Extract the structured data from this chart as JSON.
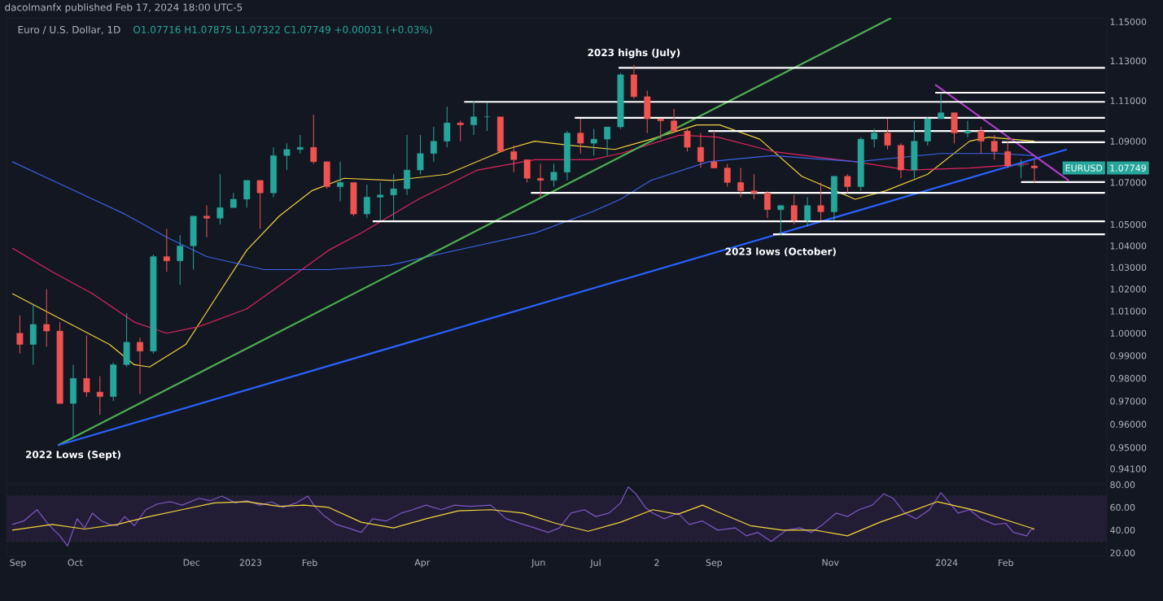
{
  "chart_data": [
    {
      "type": "candlestick",
      "title": "Euro / U.S. Dollar, 1D",
      "subtitle": "O1.07716 H1.07875 L1.07322 C1.07749 +0.00031 (+0.03%)",
      "annotations": [
        "dacolmanfx published Feb 17, 2024 18:00 UTC-5",
        {
          "text": "2023 highs (July)",
          "x": "2023-07-21",
          "y": 1.128
        },
        {
          "text": "2023 lows (October)",
          "x": "2023-10-06",
          "y": 1.045
        },
        {
          "text": "2022 Lows (Sept)",
          "x": "2022-09-30",
          "y": 0.954
        },
        "EURUSD",
        "1.07749"
      ],
      "x": [
        "2022-09-02",
        "2022-09-09",
        "2022-09-16",
        "2022-09-23",
        "2022-09-30",
        "2022-10-07",
        "2022-10-14",
        "2022-10-21",
        "2022-10-28",
        "2022-11-04",
        "2022-11-11",
        "2022-11-18",
        "2022-11-25",
        "2022-12-02",
        "2022-12-09",
        "2022-12-16",
        "2022-12-23",
        "2022-12-30",
        "2023-01-06",
        "2023-01-13",
        "2023-01-20",
        "2023-01-27",
        "2023-02-03",
        "2023-02-10",
        "2023-02-17",
        "2023-02-24",
        "2023-03-03",
        "2023-03-10",
        "2023-03-17",
        "2023-03-24",
        "2023-03-31",
        "2023-04-07",
        "2023-04-14",
        "2023-04-21",
        "2023-04-28",
        "2023-05-05",
        "2023-05-12",
        "2023-05-19",
        "2023-05-26",
        "2023-06-02",
        "2023-06-09",
        "2023-06-16",
        "2023-06-23",
        "2023-06-30",
        "2023-07-07",
        "2023-07-14",
        "2023-07-21",
        "2023-07-28",
        "2023-08-04",
        "2023-08-11",
        "2023-08-18",
        "2023-08-25",
        "2023-09-01",
        "2023-09-08",
        "2023-09-15",
        "2023-09-22",
        "2023-09-29",
        "2023-10-06",
        "2023-10-13",
        "2023-10-20",
        "2023-10-27",
        "2023-11-03",
        "2023-11-10",
        "2023-11-17",
        "2023-11-24",
        "2023-12-01",
        "2023-12-08",
        "2023-12-15",
        "2023-12-22",
        "2023-12-29",
        "2024-01-05",
        "2024-01-12",
        "2024-01-19",
        "2024-01-26",
        "2024-02-02",
        "2024-02-09",
        "2024-02-16"
      ],
      "ohlc": [
        [
          1.0,
          1.008,
          0.991,
          0.995
        ],
        [
          0.995,
          1.013,
          0.986,
          1.004
        ],
        [
          1.004,
          1.02,
          0.994,
          1.001
        ],
        [
          1.001,
          1.005,
          0.969,
          0.969
        ],
        [
          0.969,
          0.986,
          0.954,
          0.98
        ],
        [
          0.98,
          0.999,
          0.972,
          0.974
        ],
        [
          0.974,
          0.981,
          0.964,
          0.972
        ],
        [
          0.972,
          0.987,
          0.97,
          0.986
        ],
        [
          0.986,
          1.009,
          0.985,
          0.996
        ],
        [
          0.996,
          0.998,
          0.973,
          0.992
        ],
        [
          0.992,
          1.036,
          0.991,
          1.035
        ],
        [
          1.035,
          1.048,
          1.028,
          1.033
        ],
        [
          1.033,
          1.045,
          1.022,
          1.04
        ],
        [
          1.04,
          1.054,
          1.029,
          1.054
        ],
        [
          1.054,
          1.059,
          1.044,
          1.053
        ],
        [
          1.053,
          1.074,
          1.05,
          1.058
        ],
        [
          1.058,
          1.065,
          1.058,
          1.062
        ],
        [
          1.062,
          1.071,
          1.058,
          1.071
        ],
        [
          1.071,
          1.071,
          1.048,
          1.065
        ],
        [
          1.065,
          1.087,
          1.063,
          1.083
        ],
        [
          1.083,
          1.089,
          1.076,
          1.086
        ],
        [
          1.086,
          1.093,
          1.084,
          1.087
        ],
        [
          1.087,
          1.103,
          1.079,
          1.08
        ],
        [
          1.08,
          1.08,
          1.067,
          1.068
        ],
        [
          1.068,
          1.08,
          1.061,
          1.07
        ],
        [
          1.07,
          1.07,
          1.054,
          1.055
        ],
        [
          1.055,
          1.069,
          1.053,
          1.063
        ],
        [
          1.063,
          1.07,
          1.052,
          1.064
        ],
        [
          1.064,
          1.074,
          1.052,
          1.067
        ],
        [
          1.067,
          1.093,
          1.064,
          1.076
        ],
        [
          1.076,
          1.093,
          1.074,
          1.084
        ],
        [
          1.084,
          1.097,
          1.08,
          1.09
        ],
        [
          1.09,
          1.107,
          1.087,
          1.099
        ],
        [
          1.099,
          1.1,
          1.09,
          1.098
        ],
        [
          1.098,
          1.11,
          1.093,
          1.102
        ],
        [
          1.102,
          1.109,
          1.095,
          1.102
        ],
        [
          1.102,
          1.102,
          1.085,
          1.085
        ],
        [
          1.085,
          1.088,
          1.075,
          1.081
        ],
        [
          1.081,
          1.081,
          1.07,
          1.072
        ],
        [
          1.072,
          1.079,
          1.063,
          1.071
        ],
        [
          1.071,
          1.079,
          1.068,
          1.075
        ],
        [
          1.075,
          1.095,
          1.071,
          1.094
        ],
        [
          1.094,
          1.101,
          1.084,
          1.089
        ],
        [
          1.089,
          1.096,
          1.083,
          1.091
        ],
        [
          1.091,
          1.097,
          1.083,
          1.097
        ],
        [
          1.097,
          1.124,
          1.096,
          1.123
        ],
        [
          1.123,
          1.128,
          1.111,
          1.112
        ],
        [
          1.112,
          1.115,
          1.094,
          1.101
        ],
        [
          1.101,
          1.101,
          1.091,
          1.1
        ],
        [
          1.1,
          1.106,
          1.094,
          1.095
        ],
        [
          1.095,
          1.096,
          1.085,
          1.087
        ],
        [
          1.087,
          1.094,
          1.077,
          1.08
        ],
        [
          1.08,
          1.095,
          1.077,
          1.077
        ],
        [
          1.077,
          1.079,
          1.068,
          1.07
        ],
        [
          1.07,
          1.077,
          1.063,
          1.066
        ],
        [
          1.066,
          1.074,
          1.062,
          1.065
        ],
        [
          1.065,
          1.066,
          1.053,
          1.057
        ],
        [
          1.057,
          1.059,
          1.045,
          1.059
        ],
        [
          1.059,
          1.064,
          1.05,
          1.052
        ],
        [
          1.052,
          1.063,
          1.049,
          1.059
        ],
        [
          1.059,
          1.07,
          1.052,
          1.056
        ],
        [
          1.056,
          1.073,
          1.052,
          1.073
        ],
        [
          1.073,
          1.074,
          1.065,
          1.068
        ],
        [
          1.068,
          1.092,
          1.066,
          1.091
        ],
        [
          1.091,
          1.096,
          1.087,
          1.094
        ],
        [
          1.094,
          1.101,
          1.086,
          1.088
        ],
        [
          1.088,
          1.089,
          1.072,
          1.076
        ],
        [
          1.076,
          1.1,
          1.072,
          1.09
        ],
        [
          1.09,
          1.102,
          1.088,
          1.101
        ],
        [
          1.101,
          1.114,
          1.101,
          1.104
        ],
        [
          1.104,
          1.104,
          1.089,
          1.094
        ],
        [
          1.094,
          1.1,
          1.092,
          1.095
        ],
        [
          1.095,
          1.097,
          1.084,
          1.09
        ],
        [
          1.09,
          1.093,
          1.081,
          1.085
        ],
        [
          1.085,
          1.09,
          1.077,
          1.078
        ],
        [
          1.078,
          1.081,
          1.072,
          1.078
        ],
        [
          1.078,
          1.081,
          1.07,
          1.077
        ]
      ],
      "series": [
        {
          "type": "line",
          "color": "#f2d03c",
          "x": [
            "2022-08-29",
            "2022-09-20",
            "2022-10-19",
            "2022-11-01",
            "2022-11-09",
            "2022-11-28",
            "2022-12-13",
            "2022-12-30",
            "2023-01-16",
            "2023-02-02",
            "2023-02-19",
            "2023-03-17",
            "2023-04-14",
            "2023-05-15",
            "2023-05-30",
            "2023-06-17",
            "2023-07-11",
            "2023-07-30",
            "2023-08-23",
            "2023-09-04",
            "2023-09-25",
            "2023-10-17",
            "2023-11-14",
            "2023-11-30",
            "2023-12-22",
            "2024-01-13",
            "2024-01-23",
            "2024-02-04",
            "2024-02-16"
          ],
          "values": [
            1.018,
            1.008,
            0.995,
            0.986,
            0.985,
            0.995,
            1.015,
            1.038,
            1.054,
            1.066,
            1.072,
            1.071,
            1.074,
            1.086,
            1.09,
            1.088,
            1.086,
            1.091,
            1.098,
            1.098,
            1.091,
            1.073,
            1.062,
            1.066,
            1.074,
            1.09,
            1.092,
            1.091,
            1.09
          ]
        },
        {
          "type": "line",
          "color": "#e0245e",
          "x": [
            "2022-08-29",
            "2022-09-19",
            "2022-10-10",
            "2022-11-01",
            "2022-11-18",
            "2022-12-05",
            "2022-12-30",
            "2023-01-20",
            "2023-02-11",
            "2023-02-28",
            "2023-03-30",
            "2023-04-30",
            "2023-05-30",
            "2023-06-29",
            "2023-07-14",
            "2023-08-14",
            "2023-09-03",
            "2023-10-02",
            "2023-11-14",
            "2023-12-12",
            "2024-01-13",
            "2024-02-13"
          ],
          "values": [
            1.039,
            1.028,
            1.018,
            1.005,
            1.0,
            1.003,
            1.011,
            1.024,
            1.038,
            1.046,
            1.062,
            1.076,
            1.081,
            1.081,
            1.084,
            1.093,
            1.092,
            1.085,
            1.08,
            1.076,
            1.077,
            1.079
          ]
        },
        {
          "type": "line",
          "color": "#3a63e8",
          "x": [
            "2022-08-29",
            "2022-09-19",
            "2022-10-27",
            "2022-11-18",
            "2022-12-09",
            "2023-01-08",
            "2023-02-11",
            "2023-03-15",
            "2023-04-14",
            "2023-05-30",
            "2023-06-29",
            "2023-07-14",
            "2023-07-30",
            "2023-08-29",
            "2023-09-20",
            "2023-10-02",
            "2023-11-15",
            "2023-12-29",
            "2024-01-28",
            "2024-02-16"
          ],
          "values": [
            1.08,
            1.071,
            1.055,
            1.044,
            1.035,
            1.029,
            1.029,
            1.031,
            1.037,
            1.046,
            1.056,
            1.062,
            1.071,
            1.08,
            1.082,
            1.083,
            1.08,
            1.084,
            1.084,
            1.083
          ]
        },
        {
          "type": "line",
          "color": "#4caf50",
          "x": [
            "2022-09-22",
            "2023-12-03"
          ],
          "values": [
            0.951,
            1.152
          ]
        },
        {
          "type": "line",
          "color": "#2962ff",
          "x": [
            "2022-09-22",
            "2024-03-04"
          ],
          "values": [
            0.951,
            1.086
          ]
        },
        {
          "type": "line",
          "color": "#b03cc8",
          "x": [
            "2023-12-26",
            "2024-03-05"
          ],
          "values": [
            1.118,
            1.071
          ]
        },
        {
          "type": "line",
          "color": "#ffffff",
          "x": [
            "2023-07-13",
            "2024-03-24"
          ],
          "values": [
            1.1265,
            1.1265
          ]
        },
        {
          "type": "line",
          "color": "#ffffff",
          "x": [
            "2023-12-26",
            "2024-03-24"
          ],
          "values": [
            1.114,
            1.114
          ]
        },
        {
          "type": "line",
          "color": "#ffffff",
          "x": [
            "2023-04-23",
            "2024-03-24"
          ],
          "values": [
            1.1094,
            1.1094
          ]
        },
        {
          "type": "line",
          "color": "#ffffff",
          "x": [
            "2023-06-20",
            "2024-03-24"
          ],
          "values": [
            1.1015,
            1.1015
          ]
        },
        {
          "type": "line",
          "color": "#ffffff",
          "x": [
            "2023-08-29",
            "2024-03-24"
          ],
          "values": [
            1.095,
            1.095
          ]
        },
        {
          "type": "line",
          "color": "#ffffff",
          "x": [
            "2024-01-30",
            "2024-03-24"
          ],
          "values": [
            1.0895,
            1.0895
          ]
        },
        {
          "type": "line",
          "color": "#ffffff",
          "x": [
            "2024-02-09",
            "2024-03-24"
          ],
          "values": [
            1.0702,
            1.0702
          ]
        },
        {
          "type": "line",
          "color": "#ffffff",
          "x": [
            "2023-05-28",
            "2024-03-24"
          ],
          "values": [
            1.065,
            1.065
          ]
        },
        {
          "type": "line",
          "color": "#ffffff",
          "x": [
            "2023-03-06",
            "2024-03-24"
          ],
          "values": [
            1.0515,
            1.0515
          ]
        },
        {
          "type": "line",
          "color": "#ffffff",
          "x": [
            "2023-10-02",
            "2024-03-24"
          ],
          "values": [
            1.0454,
            1.0454
          ]
        }
      ],
      "xlim": [
        "2022-08-26",
        "2024-03-25"
      ],
      "ylim": [
        0.935,
        1.152
      ],
      "log": true,
      "tick_labels": "y",
      "yticks": [
        {
          "value": 0.941,
          "label": "0.94100"
        },
        {
          "value": 0.95,
          "label": "0.95000"
        },
        {
          "value": 0.96,
          "label": "0.96000"
        },
        {
          "value": 0.97,
          "label": "0.97000"
        },
        {
          "value": 0.98,
          "label": "0.98000"
        },
        {
          "value": 0.99,
          "label": "0.99000"
        },
        {
          "value": 1.0,
          "label": "1.00000"
        },
        {
          "value": 1.01,
          "label": "1.01000"
        },
        {
          "value": 1.02,
          "label": "1.02000"
        },
        {
          "value": 1.03,
          "label": "1.03000"
        },
        {
          "value": 1.04,
          "label": "1.04000"
        },
        {
          "value": 1.05,
          "label": "1.05000"
        },
        {
          "value": 1.07,
          "label": "1.07000"
        },
        {
          "value": 1.09,
          "label": "1.09000"
        },
        {
          "value": 1.11,
          "label": "1.11000"
        },
        {
          "value": 1.13,
          "label": "1.13000"
        },
        {
          "value": 1.15,
          "label": "1.15000"
        }
      ]
    },
    {
      "type": "line",
      "xlim": [
        "2022-08-26",
        "2024-03-25"
      ],
      "ylim": [
        17,
        80
      ],
      "yticks": [
        {
          "value": 20,
          "label": "20.00"
        },
        {
          "value": 40,
          "label": "40.00"
        },
        {
          "value": 60,
          "label": "60.00"
        },
        {
          "value": 80,
          "label": "80.00"
        }
      ],
      "xticks": [
        {
          "value": "2022-09-01",
          "label": "Sep"
        },
        {
          "value": "2022-10-01",
          "label": "Oct"
        },
        {
          "value": "2022-12-01",
          "label": "Dec"
        },
        {
          "value": "2023-01-01",
          "label": "2023"
        },
        {
          "value": "2023-02-01",
          "label": "Feb"
        },
        {
          "value": "2023-04-01",
          "label": "Apr"
        },
        {
          "value": "2023-06-01",
          "label": "Jun"
        },
        {
          "value": "2023-07-01",
          "label": "Jul"
        },
        {
          "value": "2023-08-02",
          "label": "2"
        },
        {
          "value": "2023-09-01",
          "label": "Sep"
        },
        {
          "value": "2023-11-01",
          "label": "Nov"
        },
        {
          "value": "2024-01-01",
          "label": "2024"
        },
        {
          "value": "2024-02-01",
          "label": "Feb"
        }
      ],
      "bands": [
        {
          "axis": "y",
          "from": 30,
          "to": 70,
          "color": "#221d35"
        }
      ],
      "ref_lines": [
        {
          "axis": "y",
          "value": 70,
          "color": "#787b86",
          "line_style": "dashed"
        },
        {
          "axis": "y",
          "value": 30,
          "color": "#787b86",
          "line_style": "dashed"
        }
      ],
      "series": [
        {
          "color": "#7e57c2",
          "x": [
            "2022-08-29",
            "2022-09-04",
            "2022-09-11",
            "2022-09-17",
            "2022-09-23",
            "2022-09-27",
            "2022-10-02",
            "2022-10-06",
            "2022-10-10",
            "2022-10-15",
            "2022-10-19",
            "2022-10-23",
            "2022-10-27",
            "2022-11-01",
            "2022-11-07",
            "2022-11-13",
            "2022-11-20",
            "2022-11-26",
            "2022-12-05",
            "2022-12-11",
            "2022-12-17",
            "2022-12-24",
            "2022-12-30",
            "2023-01-06",
            "2023-01-12",
            "2023-01-18",
            "2023-01-25",
            "2023-01-31",
            "2023-02-04",
            "2023-02-09",
            "2023-02-15",
            "2023-02-21",
            "2023-02-28",
            "2023-03-06",
            "2023-03-13",
            "2023-03-21",
            "2023-03-27",
            "2023-04-03",
            "2023-04-11",
            "2023-04-18",
            "2023-04-26",
            "2023-05-07",
            "2023-05-15",
            "2023-05-24",
            "2023-05-30",
            "2023-06-06",
            "2023-06-12",
            "2023-06-18",
            "2023-06-25",
            "2023-07-01",
            "2023-07-08",
            "2023-07-14",
            "2023-07-18",
            "2023-07-22",
            "2023-07-27",
            "2023-07-31",
            "2023-08-06",
            "2023-08-13",
            "2023-08-19",
            "2023-08-26",
            "2023-09-03",
            "2023-09-12",
            "2023-09-18",
            "2023-09-24",
            "2023-10-01",
            "2023-10-05",
            "2023-10-09",
            "2023-10-16",
            "2023-10-22",
            "2023-10-28",
            "2023-11-04",
            "2023-11-10",
            "2023-11-16",
            "2023-11-23",
            "2023-11-29",
            "2023-12-04",
            "2023-12-10",
            "2023-12-16",
            "2023-12-23",
            "2023-12-29",
            "2024-01-02",
            "2024-01-07",
            "2024-01-13",
            "2024-01-19",
            "2024-01-26",
            "2024-02-01",
            "2024-02-05",
            "2024-02-12",
            "2024-02-14",
            "2024-02-16"
          ],
          "values": [
            45,
            48,
            58,
            45,
            35,
            26,
            50,
            42,
            55,
            48,
            45,
            44,
            52,
            44,
            58,
            63,
            65,
            62,
            68,
            66,
            70,
            64,
            66,
            62,
            65,
            60,
            64,
            70,
            60,
            52,
            45,
            42,
            38,
            50,
            48,
            55,
            58,
            62,
            58,
            62,
            61,
            62,
            50,
            45,
            42,
            38,
            42,
            55,
            58,
            52,
            55,
            64,
            78,
            72,
            60,
            55,
            50,
            55,
            45,
            48,
            40,
            42,
            35,
            38,
            30,
            35,
            40,
            42,
            38,
            45,
            55,
            52,
            58,
            62,
            72,
            68,
            55,
            50,
            58,
            73,
            65,
            55,
            58,
            50,
            45,
            46,
            38,
            35,
            40,
            41
          ]
        },
        {
          "color": "#f5d63c",
          "x": [
            "2022-08-29",
            "2022-09-19",
            "2022-10-06",
            "2022-10-23",
            "2022-11-09",
            "2022-11-26",
            "2022-12-13",
            "2022-12-30",
            "2023-01-16",
            "2023-01-29",
            "2023-02-11",
            "2023-02-28",
            "2023-03-17",
            "2023-04-03",
            "2023-04-20",
            "2023-05-07",
            "2023-05-24",
            "2023-06-10",
            "2023-06-27",
            "2023-07-14",
            "2023-07-31",
            "2023-08-13",
            "2023-08-26",
            "2023-09-03",
            "2023-09-20",
            "2023-10-07",
            "2023-10-24",
            "2023-11-10",
            "2023-11-27",
            "2023-12-14",
            "2023-12-27",
            "2024-01-17",
            "2024-02-03",
            "2024-02-16"
          ],
          "values": [
            40,
            45,
            41,
            45,
            52,
            58,
            64,
            65,
            61,
            62,
            60,
            47,
            42,
            50,
            57,
            58,
            55,
            46,
            39,
            47,
            58,
            54,
            62,
            56,
            44,
            40,
            40,
            35,
            47,
            57,
            65,
            57,
            48,
            41
          ]
        }
      ]
    }
  ]
}
